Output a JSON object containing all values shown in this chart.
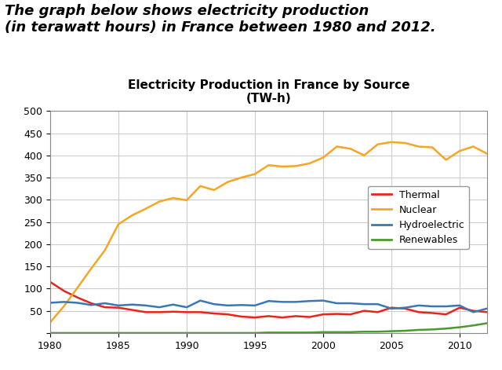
{
  "title": "Electricity Production in France by Source\n(TW-h)",
  "header_text": "The graph below shows electricity production\n(in terawatt hours) in France between 1980 and 2012.",
  "years": [
    1980,
    1981,
    1982,
    1983,
    1984,
    1985,
    1986,
    1987,
    1988,
    1989,
    1990,
    1991,
    1992,
    1993,
    1994,
    1995,
    1996,
    1997,
    1998,
    1999,
    2000,
    2001,
    2002,
    2003,
    2004,
    2005,
    2006,
    2007,
    2008,
    2009,
    2010,
    2011,
    2012
  ],
  "thermal": [
    115,
    95,
    80,
    67,
    58,
    57,
    52,
    47,
    47,
    48,
    47,
    47,
    44,
    42,
    37,
    35,
    38,
    35,
    38,
    36,
    42,
    43,
    42,
    50,
    47,
    57,
    55,
    47,
    45,
    42,
    57,
    50,
    47
  ],
  "nuclear": [
    24,
    60,
    102,
    145,
    186,
    245,
    265,
    280,
    296,
    304,
    299,
    331,
    322,
    340,
    350,
    358,
    378,
    375,
    376,
    382,
    395,
    420,
    415,
    400,
    425,
    430,
    428,
    420,
    418,
    390,
    410,
    420,
    404
  ],
  "hydroelectric": [
    68,
    70,
    68,
    63,
    67,
    62,
    64,
    62,
    58,
    64,
    58,
    73,
    65,
    62,
    63,
    62,
    72,
    70,
    70,
    72,
    73,
    67,
    67,
    65,
    65,
    55,
    57,
    62,
    60,
    60,
    62,
    47,
    55
  ],
  "renewables": [
    0,
    0,
    0,
    0,
    0,
    0,
    0,
    0,
    0,
    0,
    0,
    0,
    0,
    0,
    0,
    0,
    1,
    1,
    1,
    1,
    2,
    2,
    2,
    3,
    3,
    4,
    5,
    7,
    8,
    10,
    13,
    17,
    22
  ],
  "thermal_color": "#e8251a",
  "nuclear_color": "#f5a623",
  "hydroelectric_color": "#3a78b5",
  "renewables_color": "#4a9a2f",
  "ylim": [
    0,
    500
  ],
  "yticks": [
    0,
    50,
    100,
    150,
    200,
    250,
    300,
    350,
    400,
    450,
    500
  ],
  "xticks": [
    1980,
    1985,
    1990,
    1995,
    2000,
    2005,
    2010
  ],
  "grid_color": "#cccccc",
  "background_color": "#ffffff",
  "title_fontsize": 11,
  "header_fontsize": 13,
  "tick_fontsize": 9,
  "legend_fontsize": 9
}
